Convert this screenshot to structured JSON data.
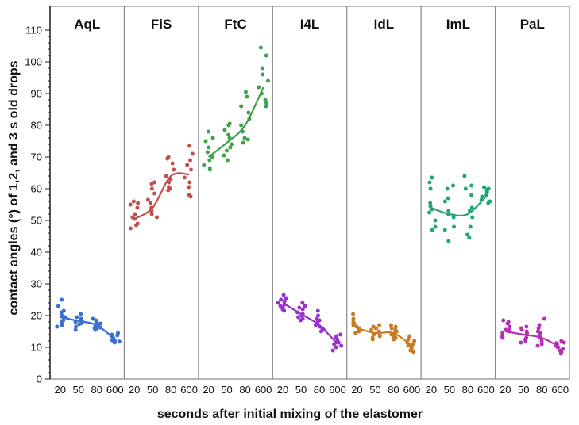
{
  "chart_data": {
    "type": "scatter",
    "ylabel": "contact angles (°) of 1,2, and 3 s old drops",
    "xlabel": "seconds after initial mixing of the elastomer",
    "ylim": [
      0,
      115
    ],
    "yticks": [
      0,
      10,
      20,
      30,
      40,
      50,
      60,
      70,
      80,
      90,
      100,
      110
    ],
    "categories": [
      "20",
      "50",
      "80",
      "600"
    ],
    "grid": false,
    "panels": [
      {
        "name": "AqL",
        "color": "#3a6fd0",
        "trend": [
          19.5,
          18.3,
          17.0,
          12.5
        ],
        "points": [
          [
            25.0,
            23.0,
            21.0,
            19.5,
            18.0,
            17.0,
            16.5,
            21.5,
            20.0,
            18.5
          ],
          [
            20.5,
            19.5,
            18.8,
            18.0,
            17.3,
            16.5,
            15.5,
            19.0,
            18.2,
            17.6
          ],
          [
            19.0,
            18.0,
            17.3,
            16.8,
            16.0,
            15.5,
            17.5,
            16.2,
            18.5,
            15.8
          ],
          [
            14.5,
            14.0,
            13.5,
            13.0,
            12.5,
            12.0,
            11.8,
            11.5,
            13.8,
            12.2
          ]
        ]
      },
      {
        "name": "FiS",
        "color": "#c0504d",
        "trend": [
          50.5,
          54.0,
          64.0,
          64.5
        ],
        "points": [
          [
            56.0,
            55.5,
            54.0,
            51.0,
            50.5,
            49.0,
            48.5,
            47.5,
            52.0,
            55.0
          ],
          [
            62.0,
            61.5,
            58.5,
            55.5,
            54.0,
            53.0,
            52.0,
            51.0,
            60.0,
            56.5
          ],
          [
            70.0,
            69.5,
            68.0,
            64.0,
            62.0,
            60.5,
            60.0,
            59.5,
            66.0,
            63.0
          ],
          [
            73.5,
            71.0,
            69.0,
            66.0,
            63.5,
            62.0,
            60.5,
            58.0,
            57.5,
            67.5
          ]
        ]
      },
      {
        "name": "FtC",
        "color": "#3fa34d",
        "trend": [
          70.0,
          74.5,
          80.0,
          92.0
        ],
        "points": [
          [
            78.0,
            76.0,
            75.0,
            73.0,
            70.0,
            69.0,
            67.5,
            66.5,
            66.0,
            71.5
          ],
          [
            80.5,
            80.0,
            78.5,
            76.0,
            74.0,
            72.0,
            70.5,
            69.0,
            77.0,
            73.0
          ],
          [
            90.5,
            89.0,
            86.0,
            82.0,
            80.0,
            78.0,
            76.0,
            75.5,
            74.5,
            84.0
          ],
          [
            104.5,
            102.0,
            98.0,
            96.0,
            92.0,
            90.0,
            88.0,
            87.0,
            86.0,
            94.0
          ]
        ]
      },
      {
        "name": "I4L",
        "color": "#9932cc",
        "trend": [
          24.0,
          20.5,
          17.0,
          11.0
        ],
        "points": [
          [
            26.5,
            25.5,
            25.0,
            24.0,
            23.0,
            22.5,
            21.5,
            24.5,
            23.5,
            22.0
          ],
          [
            24.0,
            23.0,
            22.0,
            21.0,
            20.0,
            19.5,
            19.0,
            18.5,
            22.5,
            20.5
          ],
          [
            21.5,
            20.0,
            19.0,
            18.0,
            17.0,
            16.5,
            15.5,
            15.0,
            18.5,
            16.0
          ],
          [
            14.0,
            13.0,
            12.5,
            12.0,
            11.0,
            10.5,
            10.0,
            9.0,
            11.5,
            13.5
          ]
        ]
      },
      {
        "name": "IdL",
        "color": "#c97a22",
        "trend": [
          16.0,
          14.5,
          14.5,
          10.5
        ],
        "points": [
          [
            20.5,
            19.0,
            18.0,
            17.0,
            16.0,
            15.5,
            15.0,
            14.5,
            17.5,
            16.5
          ],
          [
            17.0,
            16.5,
            15.5,
            15.0,
            14.0,
            13.5,
            13.0,
            12.5,
            16.0,
            14.5
          ],
          [
            17.0,
            16.5,
            16.0,
            15.0,
            14.0,
            13.5,
            13.0,
            12.5,
            15.5,
            14.5
          ],
          [
            13.5,
            12.5,
            12.0,
            11.5,
            10.5,
            10.0,
            9.5,
            9.0,
            8.5,
            11.0
          ]
        ]
      },
      {
        "name": "ImL",
        "color": "#22a37a",
        "trend": [
          54.0,
          52.0,
          52.0,
          57.5
        ],
        "points": [
          [
            63.5,
            62.0,
            60.0,
            54.5,
            53.5,
            52.5,
            50.0,
            48.0,
            47.0,
            55.5
          ],
          [
            61.0,
            60.0,
            56.0,
            53.0,
            52.0,
            51.0,
            48.0,
            47.0,
            43.5,
            57.0
          ],
          [
            64.0,
            61.0,
            60.0,
            54.0,
            53.0,
            51.0,
            48.0,
            45.5,
            44.5,
            58.0
          ],
          [
            60.5,
            60.0,
            59.5,
            59.0,
            58.0,
            57.5,
            56.0,
            55.5,
            56.5,
            59.8
          ]
        ]
      },
      {
        "name": "PaL",
        "color": "#b530b5",
        "trend": [
          15.0,
          14.0,
          13.0,
          10.0
        ],
        "points": [
          [
            18.5,
            18.0,
            17.5,
            16.5,
            15.5,
            15.0,
            14.5,
            13.5,
            13.0,
            16.0
          ],
          [
            16.5,
            16.0,
            15.5,
            14.5,
            13.0,
            12.5,
            12.0,
            11.5,
            14.0,
            15.0
          ],
          [
            19.0,
            17.0,
            16.0,
            15.0,
            13.5,
            13.0,
            12.0,
            11.0,
            10.5,
            14.5
          ],
          [
            12.0,
            11.5,
            11.0,
            10.5,
            10.0,
            9.5,
            9.0,
            8.5,
            8.0,
            11.3
          ]
        ]
      }
    ]
  }
}
